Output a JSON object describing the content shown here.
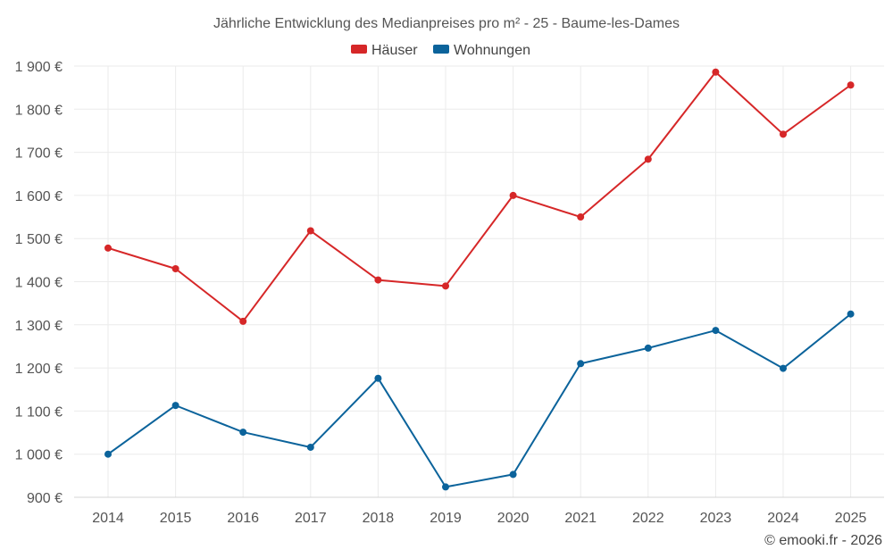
{
  "chart_data": {
    "type": "line",
    "title": "Jährliche Entwicklung des Medianpreises pro m² - 25 - Baume-les-Dames",
    "categories": [
      "2014",
      "2015",
      "2016",
      "2017",
      "2018",
      "2019",
      "2020",
      "2021",
      "2022",
      "2023",
      "2024",
      "2025"
    ],
    "series": [
      {
        "name": "Häuser",
        "color": "#d62728",
        "values": [
          1478,
          1430,
          1308,
          1518,
          1404,
          1390,
          1600,
          1550,
          1684,
          1886,
          1742,
          1856
        ]
      },
      {
        "name": "Wohnungen",
        "color": "#0b639b",
        "values": [
          1000,
          1113,
          1051,
          1016,
          1176,
          924,
          953,
          1210,
          1246,
          1287,
          1199,
          1325
        ]
      }
    ],
    "y_ticks": [
      "900 €",
      "1 000 €",
      "1 100 €",
      "1 200 €",
      "1 300 €",
      "1 400 €",
      "1 500 €",
      "1 600 €",
      "1 700 €",
      "1 800 €",
      "1 900 €"
    ],
    "ylim": [
      900,
      1900
    ],
    "legend_position": "top-center",
    "grid": true,
    "xlabel": "",
    "ylabel": ""
  },
  "credit": "© emooki.fr - 2026"
}
